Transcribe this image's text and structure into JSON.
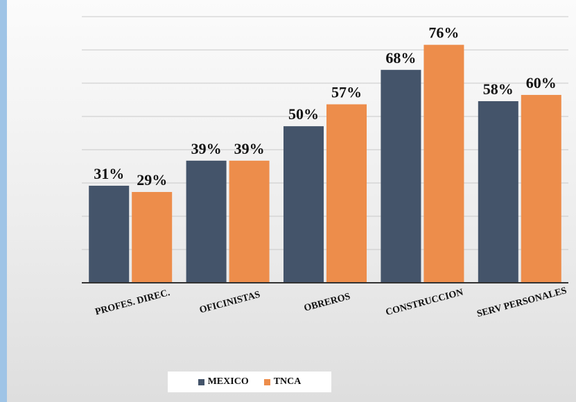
{
  "chart_data": {
    "type": "bar",
    "categories": [
      "PROFES. DIREC.",
      "OFICINISTAS",
      "OBREROS",
      "CONSTRUCCION",
      "SERV PERSONALES"
    ],
    "series": [
      {
        "name": "MEXICO",
        "color": "#44546a",
        "values": [
          31,
          39,
          50,
          68,
          58
        ],
        "labels": [
          "31%",
          "39%",
          "50%",
          "68%",
          "58%"
        ]
      },
      {
        "name": "TNCA",
        "color": "#ed8d4b",
        "values": [
          29,
          39,
          57,
          76,
          60
        ],
        "labels": [
          "29%",
          "39%",
          "57%",
          "76%",
          "60%"
        ]
      }
    ],
    "ylim": [
      0,
      85
    ],
    "grid": true,
    "legend_position": "bottom"
  }
}
